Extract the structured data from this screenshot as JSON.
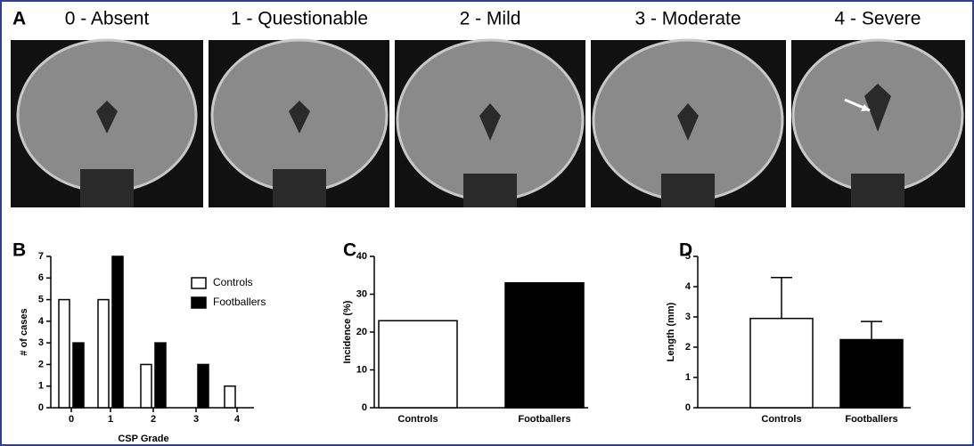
{
  "panel_a": {
    "label": "A",
    "grades": [
      "0 - Absent",
      "1 - Questionable",
      "2 - Mild",
      "3 - Moderate",
      "4 - Severe"
    ]
  },
  "chart_data": [
    {
      "type": "bar",
      "label": "B",
      "xlabel": "CSP Grade",
      "ylabel": "# of cases",
      "categories": [
        "0",
        "1",
        "2",
        "3",
        "4"
      ],
      "series": [
        {
          "name": "Controls",
          "color": "#ffffff",
          "values": [
            5,
            5,
            2,
            0,
            1
          ]
        },
        {
          "name": "Footballers",
          "color": "#000000",
          "values": [
            3,
            7,
            3,
            2,
            0
          ]
        }
      ],
      "ylim": [
        0,
        7
      ],
      "yticks": [
        0,
        1,
        2,
        3,
        4,
        5,
        6,
        7
      ],
      "legend": "upper right"
    },
    {
      "type": "bar",
      "label": "C",
      "ylabel": "Incidence (%)",
      "categories": [
        "Controls",
        "Footballers"
      ],
      "values": [
        23,
        33
      ],
      "colors": [
        "#ffffff",
        "#000000"
      ],
      "ylim": [
        0,
        40
      ],
      "yticks": [
        0,
        10,
        20,
        30,
        40
      ]
    },
    {
      "type": "bar",
      "label": "D",
      "ylabel": "Length (mm)",
      "categories": [
        "Controls",
        "Footballers"
      ],
      "values": [
        2.95,
        2.25
      ],
      "errors": [
        1.35,
        0.6
      ],
      "colors": [
        "#ffffff",
        "#000000"
      ],
      "ylim": [
        0,
        5
      ],
      "yticks": [
        0,
        1,
        2,
        3,
        4,
        5
      ]
    }
  ]
}
